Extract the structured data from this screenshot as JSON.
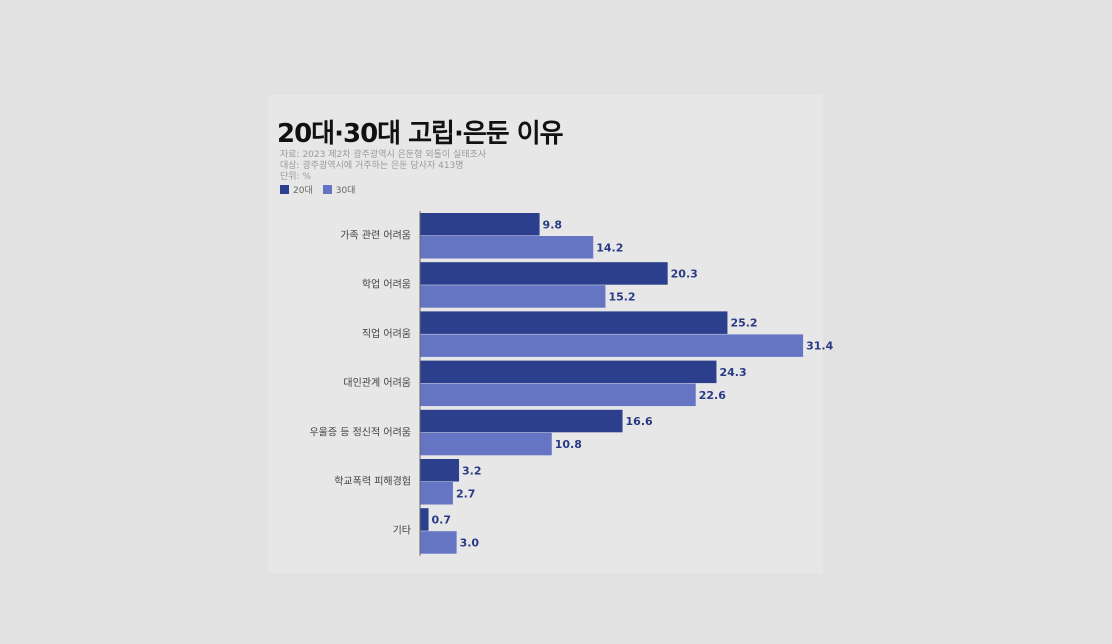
{
  "title": "20대·30대 고립·은둔 이유",
  "source": "자료: 2023 제2차 광주광역시 은둔형 외톨이 실태조사",
  "target": "대상: 광주광역시에 거주하는 은둔 당사자 413명",
  "unit": "단위: %",
  "colors": {
    "s20": "#2b3f8c",
    "s30": "#6575c4"
  },
  "chart_data": {
    "type": "bar",
    "orientation": "horizontal",
    "categories": [
      "가족 관련 어려움",
      "학업 어려움",
      "직업 어려움",
      "대인관계 어려움",
      "우울증 등 정신적 어려움",
      "학교폭력 피해경험",
      "기타"
    ],
    "series": [
      {
        "name": "20대",
        "values": [
          9.8,
          20.3,
          25.2,
          24.3,
          16.6,
          3.2,
          0.7
        ]
      },
      {
        "name": "30대",
        "values": [
          14.2,
          15.2,
          31.4,
          22.6,
          10.8,
          2.7,
          3.0
        ]
      }
    ],
    "title": "20대·30대 고립·은둔 이유",
    "legend": "top-left",
    "grid": false
  }
}
